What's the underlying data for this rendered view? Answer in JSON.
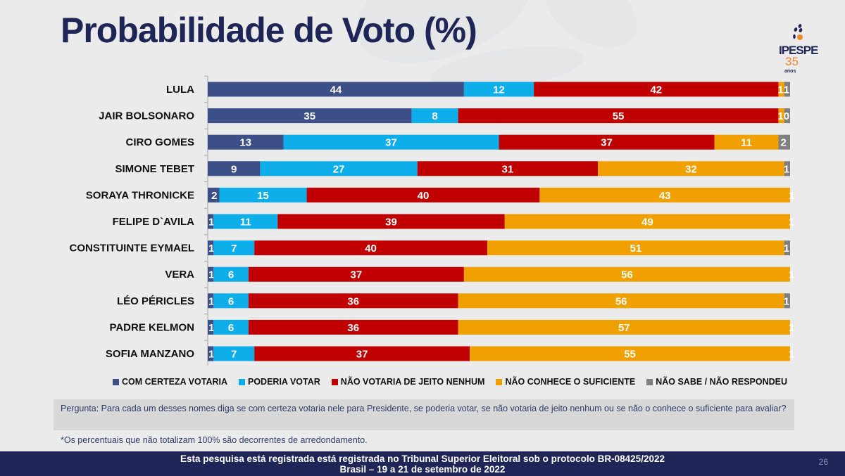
{
  "title": "Probabilidade de Voto (%)",
  "logo": {
    "name": "IPESPE",
    "years": "35",
    "years_label": "anos"
  },
  "chart_data": {
    "type": "bar",
    "orientation": "horizontal",
    "stacked": true,
    "title": "Probabilidade de Voto (%)",
    "xlabel": "",
    "ylabel": "",
    "xlim": [
      0,
      100
    ],
    "grid": false,
    "legend_position": "bottom",
    "categories": [
      "LULA",
      "JAIR BOLSONARO",
      "CIRO GOMES",
      "SIMONE TEBET",
      "SORAYA THRONICKE",
      "FELIPE D`AVILA",
      "CONSTITUINTE EYMAEL",
      "VERA",
      "LÉO PÉRICLES",
      "PADRE KELMON",
      "SOFIA MANZANO"
    ],
    "series": [
      {
        "name": "COM CERTEZA VOTARIA",
        "color": "#3c4f86",
        "values": [
          44,
          35,
          13,
          9,
          2,
          1,
          1,
          1,
          1,
          1,
          1
        ]
      },
      {
        "name": "PODERIA VOTAR",
        "color": "#0eaeea",
        "values": [
          12,
          8,
          37,
          27,
          15,
          11,
          7,
          6,
          6,
          6,
          7
        ]
      },
      {
        "name": "NÃO VOTARIA DE JEITO NENHUM",
        "color": "#c00000",
        "values": [
          42,
          55,
          37,
          31,
          40,
          39,
          40,
          37,
          36,
          36,
          37
        ]
      },
      {
        "name": "NÃO CONHECE O SUFICIENTE",
        "color": "#f0a000",
        "values": [
          1,
          1,
          11,
          32,
          43,
          49,
          51,
          56,
          56,
          57,
          55
        ]
      },
      {
        "name": "NÃO SABE / NÃO RESPONDEU",
        "color": "#7f7f7f",
        "values": [
          1,
          0,
          2,
          1,
          1,
          1,
          1,
          1,
          1,
          1,
          1
        ]
      }
    ]
  },
  "question": "Pergunta:  Para cada um desses nomes diga se com certeza votaria nele para Presidente, se poderia votar, se não votaria de jeito nenhum ou se não o conhece o suficiente para avaliar?",
  "footnote": "*Os percentuais que não totalizam 100% são decorrentes de arredondamento.",
  "footer": {
    "line1": "Esta pesquisa está registrada está registrada no Tribunal Superior Eleitoral sob o protocolo BR-08425/2022",
    "line2": "Brasil – 19 a 21 de setembro de 2022"
  },
  "page_number": "26"
}
